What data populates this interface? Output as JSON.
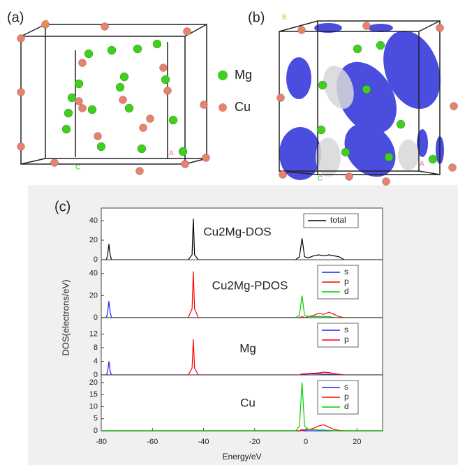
{
  "panels": {
    "a": {
      "label": "(a)",
      "corner_labels": [
        "B",
        "A",
        "C"
      ],
      "legend": [
        "Mg",
        "Cu"
      ]
    },
    "b": {
      "label": "(b)",
      "corner_labels": [
        "B",
        "A",
        "C"
      ]
    },
    "c": {
      "label": "(c)"
    }
  },
  "chart_data": [
    {
      "type": "line",
      "annotation": "Cu2Mg-DOS",
      "ylabel": "DOS(electrons/eV)",
      "x": [
        -80,
        -78,
        -77.5,
        -77,
        -76.5,
        -76,
        -46,
        -44.5,
        -44,
        -43.5,
        -42,
        -4,
        -2.5,
        -1.5,
        -0.5,
        1,
        3,
        5,
        7,
        9,
        11,
        13,
        15,
        30
      ],
      "series": [
        {
          "name": "total",
          "color": "#000000",
          "values": [
            0,
            0,
            5,
            16,
            5,
            0,
            0,
            5,
            42,
            5,
            0,
            0,
            3,
            22,
            3,
            2,
            4,
            5,
            4,
            5,
            4,
            3,
            0,
            0
          ]
        }
      ],
      "xlim": [
        -80,
        30
      ],
      "ylim": [
        0,
        50
      ],
      "yticks": [
        0,
        20,
        40
      ]
    },
    {
      "type": "line",
      "annotation": "Cu2Mg-PDOS",
      "x": [
        -80,
        -78,
        -77.5,
        -77,
        -76.5,
        -76,
        -46,
        -44.5,
        -44,
        -43.5,
        -42,
        -4,
        -2.5,
        -1.5,
        -0.5,
        1,
        3,
        5,
        7,
        9,
        11,
        13,
        15,
        30
      ],
      "series": [
        {
          "name": "s",
          "color": "#1f1fff",
          "values": [
            0,
            0,
            5,
            15,
            5,
            0,
            0,
            0,
            0,
            0,
            0,
            0,
            0,
            0,
            0,
            0,
            0,
            0,
            0,
            0,
            0,
            0,
            0,
            0
          ]
        },
        {
          "name": "p",
          "color": "#ff0000",
          "values": [
            0,
            0,
            0,
            0,
            0,
            0,
            0,
            8,
            42,
            8,
            0,
            0,
            0,
            1,
            0,
            1,
            2,
            4,
            3,
            5,
            3,
            1,
            0,
            0
          ]
        },
        {
          "name": "d",
          "color": "#00cc00",
          "values": [
            0,
            0,
            0,
            0,
            0,
            0,
            0,
            0,
            0,
            0,
            0,
            0,
            2,
            20,
            2,
            1,
            1,
            1,
            1,
            1,
            0,
            0,
            0,
            0
          ]
        }
      ],
      "xlim": [
        -80,
        30
      ],
      "ylim": [
        0,
        50
      ],
      "yticks": [
        0,
        20,
        40
      ]
    },
    {
      "type": "line",
      "annotation": "Mg",
      "x": [
        -80,
        -78,
        -77.5,
        -77,
        -76.5,
        -76,
        -46,
        -44.5,
        -44,
        -43.5,
        -42,
        -4,
        -2.5,
        -1.5,
        -0.5,
        1,
        3,
        5,
        7,
        9,
        11,
        13,
        15,
        30
      ],
      "series": [
        {
          "name": "s",
          "color": "#1f1fff",
          "values": [
            0,
            0,
            1,
            4,
            1,
            0,
            0,
            0,
            0,
            0,
            0,
            0,
            0,
            0.2,
            0.2,
            0.3,
            0.3,
            0.3,
            0.2,
            0.2,
            0.1,
            0,
            0,
            0
          ]
        },
        {
          "name": "p",
          "color": "#ff0000",
          "values": [
            0,
            0,
            0,
            0,
            0,
            0,
            0,
            2,
            10.5,
            2,
            0,
            0,
            0,
            0.3,
            0.3,
            0.4,
            0.5,
            0.6,
            0.8,
            0.7,
            0.4,
            0.2,
            0,
            0
          ]
        }
      ],
      "xlim": [
        -80,
        30
      ],
      "ylim": [
        0,
        16
      ],
      "yticks": [
        0,
        4,
        8,
        12
      ]
    },
    {
      "type": "line",
      "annotation": "Cu",
      "xlabel": "Energy/eV",
      "x": [
        -80,
        -78,
        -77.5,
        -77,
        -76.5,
        -76,
        -46,
        -44.5,
        -44,
        -43.5,
        -42,
        -4,
        -2.5,
        -1.5,
        -0.5,
        1,
        3,
        5,
        7,
        9,
        11,
        13,
        15,
        30
      ],
      "series": [
        {
          "name": "s",
          "color": "#1f1fff",
          "values": [
            0,
            0,
            0,
            0,
            0,
            0,
            0,
            0,
            0,
            0,
            0,
            0,
            0,
            0.5,
            0,
            0,
            0,
            0,
            0,
            0,
            0,
            0,
            0,
            0
          ]
        },
        {
          "name": "p",
          "color": "#ff0000",
          "values": [
            0,
            0,
            0,
            0,
            0,
            0,
            0,
            0,
            0,
            0,
            0,
            0,
            0,
            0.5,
            0.3,
            0.5,
            1,
            2,
            2.5,
            1.5,
            0.5,
            0.2,
            0,
            0
          ]
        },
        {
          "name": "d",
          "color": "#00cc00",
          "values": [
            0,
            0,
            0,
            0,
            0,
            0,
            0,
            0,
            0,
            0,
            0,
            0,
            2,
            20,
            2,
            0.5,
            0.5,
            0.3,
            0.3,
            0.2,
            0,
            0,
            0,
            0
          ]
        }
      ],
      "xlim": [
        -80,
        30
      ],
      "ylim": [
        0,
        22
      ],
      "yticks": [
        0,
        5,
        10,
        15,
        20
      ],
      "xticks": [
        -80,
        -60,
        -40,
        -20,
        0,
        20
      ]
    }
  ]
}
